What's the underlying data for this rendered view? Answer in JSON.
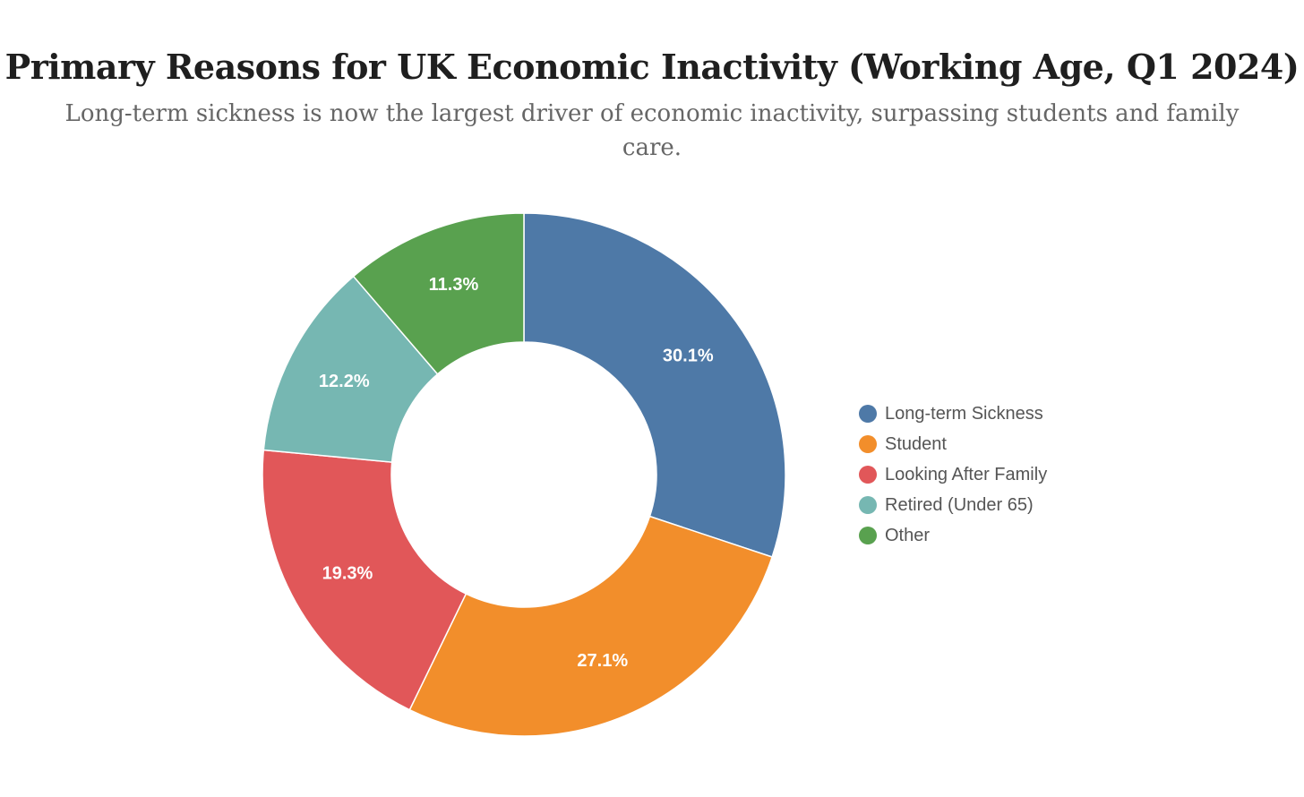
{
  "chart_data": {
    "type": "pie",
    "variant": "donut",
    "title": "Primary Reasons for UK Economic Inactivity (Working Age, Q1 2024)",
    "subtitle": "Long-term sickness is now the largest driver of economic inactivity, surpassing students and family care.",
    "legend_position": "right",
    "slices": [
      {
        "name": "Long-term Sickness",
        "value": 30.1,
        "label": "30.1%",
        "color": "#4e79a7"
      },
      {
        "name": "Student",
        "value": 27.1,
        "label": "27.1%",
        "color": "#f28e2b"
      },
      {
        "name": "Looking After Family",
        "value": 19.3,
        "label": "19.3%",
        "color": "#e15759"
      },
      {
        "name": "Retired (Under 65)",
        "value": 12.2,
        "label": "12.2%",
        "color": "#76b7b2"
      },
      {
        "name": "Other",
        "value": 11.3,
        "label": "11.3%",
        "color": "#59a14f"
      }
    ]
  }
}
